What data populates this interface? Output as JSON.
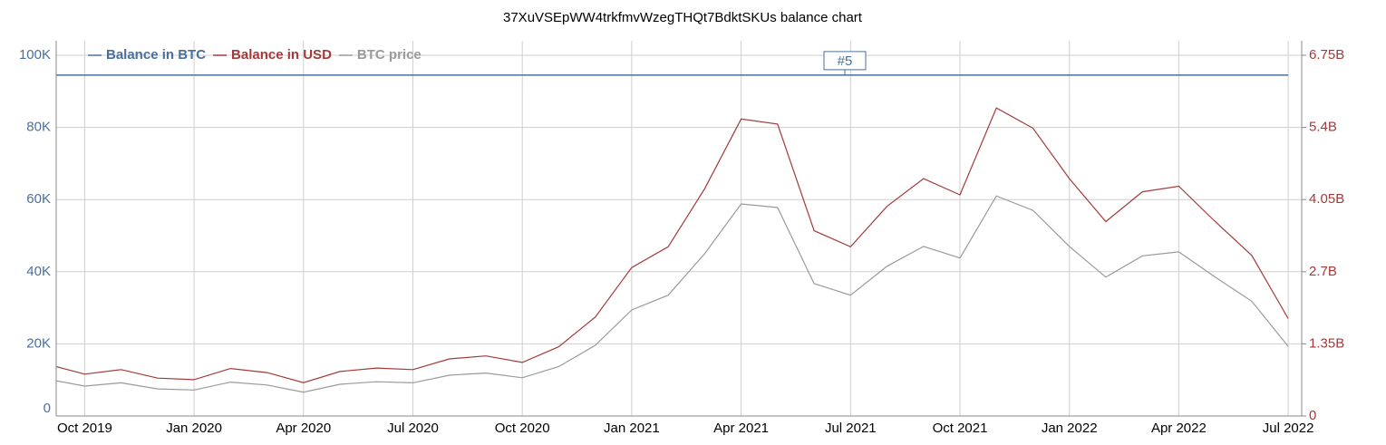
{
  "chart_data": {
    "type": "line",
    "title": "37XuVSEpWW4trkfmvWzegTHQt7BdktSKUs balance chart",
    "x": [
      "Sep 2019",
      "Oct 2019",
      "Nov 2019",
      "Dec 2019",
      "Jan 2020",
      "Feb 2020",
      "Mar 2020",
      "Apr 2020",
      "May 2020",
      "Jun 2020",
      "Jul 2020",
      "Aug 2020",
      "Sep 2020",
      "Oct 2020",
      "Nov 2020",
      "Dec 2020",
      "Jan 2021",
      "Feb 2021",
      "Mar 2021",
      "Apr 2021",
      "May 2021",
      "Jun 2021",
      "Jul 2021",
      "Aug 2021",
      "Sep 2021",
      "Oct 2021",
      "Nov 2021",
      "Dec 2021",
      "Jan 2022",
      "Feb 2022",
      "Mar 2022",
      "Apr 2022",
      "May 2022",
      "Jun 2022",
      "Jul 2022"
    ],
    "xlim": [
      "Sep 2019",
      "Jul 2022"
    ],
    "xticks": [
      "Oct 2019",
      "Jan 2020",
      "Apr 2020",
      "Jul 2020",
      "Oct 2020",
      "Jan 2021",
      "Apr 2021",
      "Jul 2021",
      "Oct 2021",
      "Jan 2022",
      "Apr 2022",
      "Jul 2022"
    ],
    "ylim": [
      0,
      100000
    ],
    "yticks": [
      {
        "value": 0,
        "label": "0"
      },
      {
        "value": 20000,
        "label": "20K"
      },
      {
        "value": 40000,
        "label": "40K"
      },
      {
        "value": 60000,
        "label": "60K"
      },
      {
        "value": 80000,
        "label": "80K"
      },
      {
        "value": 100000,
        "label": "100K"
      }
    ],
    "y2lim": [
      0,
      6750000000
    ],
    "y2ticks": [
      {
        "value": 0,
        "label": "0"
      },
      {
        "value": 1350000000,
        "label": "1.35B"
      },
      {
        "value": 2700000000,
        "label": "2.7B"
      },
      {
        "value": 4050000000,
        "label": "4.05B"
      },
      {
        "value": 5400000000,
        "label": "5.4B"
      },
      {
        "value": 6750000000,
        "label": "6.75B"
      }
    ],
    "grid": true,
    "legend": "top-left",
    "annotation": "#5",
    "series": [
      {
        "name": "Balance in BTC",
        "color": "#4a6f9c",
        "values": [
          94500,
          94500,
          94500,
          94500,
          94500,
          94500,
          94500,
          94500,
          94500,
          94500,
          94500,
          94500,
          94500,
          94500,
          94500,
          94500,
          94500,
          94500,
          94500,
          94500,
          94500,
          94500,
          94500,
          94500,
          94500,
          94500,
          94500,
          94500,
          94500,
          94500,
          94500,
          94500,
          94500,
          94500,
          94500
        ]
      },
      {
        "name": "Balance in USD",
        "color": "#a33a3a",
        "axis": "y2",
        "values": [
          964000000,
          784000000,
          869000000,
          709000000,
          680000000,
          888000000,
          813000000,
          624000000,
          832000000,
          898000000,
          869000000,
          1068000000,
          1125000000,
          1002000000,
          1295000000,
          1852000000,
          2778000000,
          3166000000,
          4253000000,
          5557000000,
          5462000000,
          3468000000,
          3166000000,
          3922000000,
          4442000000,
          4139000000,
          5765000000,
          5387000000,
          4442000000,
          3638000000,
          4196000000,
          4300000000,
          3638000000,
          3005000000,
          1824000000
        ]
      },
      {
        "name": "BTC price",
        "color": "#9a9a9a",
        "values": [
          10200,
          8300,
          9200,
          7500,
          7200,
          9400,
          8600,
          6600,
          8800,
          9500,
          9200,
          11300,
          11900,
          10600,
          13700,
          19600,
          29400,
          33500,
          45000,
          58800,
          57800,
          36700,
          33500,
          41500,
          47000,
          43800,
          61000,
          57000,
          47000,
          38500,
          44400,
          45500,
          38500,
          31800,
          19300
        ]
      }
    ]
  }
}
